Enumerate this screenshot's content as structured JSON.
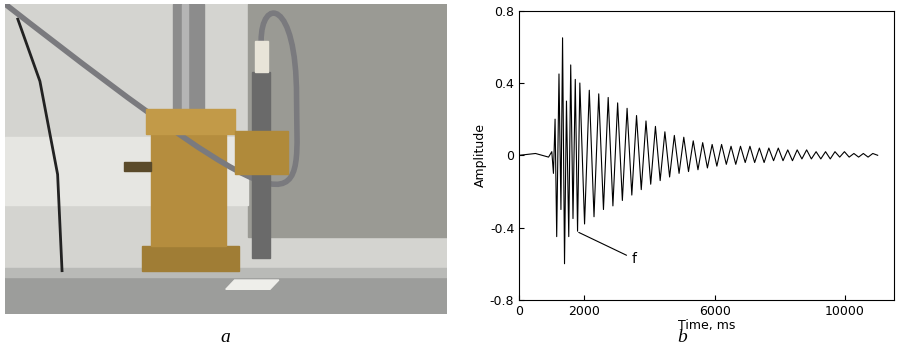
{
  "captions": [
    "a",
    "b"
  ],
  "chart_data": {
    "type": "line",
    "color": "#000000",
    "x_label": "Time, ms",
    "y_label": "Amplitude",
    "xlim": [
      0,
      11500
    ],
    "xticks": [
      0,
      2000,
      6000,
      10000
    ],
    "ylim": [
      -0.8,
      0.8
    ],
    "yticks": [
      -0.8,
      -0.4,
      0,
      0.4,
      0.8
    ],
    "annotations": [
      {
        "text": "f",
        "x": 1750,
        "y": -0.42
      }
    ],
    "x": [
      0,
      500,
      900,
      1000,
      1050,
      1100,
      1150,
      1220,
      1280,
      1330,
      1390,
      1450,
      1520,
      1580,
      1650,
      1720,
      1790,
      1860,
      2005,
      2150,
      2295,
      2440,
      2585,
      2730,
      2875,
      3020,
      3165,
      3310,
      3455,
      3600,
      3745,
      3890,
      4035,
      4180,
      4325,
      4470,
      4615,
      4760,
      4905,
      5050,
      5195,
      5340,
      5485,
      5630,
      5775,
      5920,
      6065,
      6210,
      6355,
      6500,
      6645,
      6790,
      6935,
      7080,
      7225,
      7370,
      7515,
      7660,
      7805,
      7950,
      8095,
      8240,
      8385,
      8530,
      8675,
      8820,
      8965,
      9110,
      9255,
      9400,
      9545,
      9690,
      9835,
      9980,
      10125,
      10270,
      10415,
      10560,
      10705,
      10850,
      11000
    ],
    "values": [
      0.0,
      0.01,
      -0.01,
      0.02,
      -0.1,
      0.2,
      -0.45,
      0.45,
      -0.3,
      0.65,
      -0.6,
      0.3,
      -0.45,
      0.5,
      -0.35,
      0.42,
      -0.42,
      0.4,
      -0.38,
      0.36,
      -0.34,
      0.34,
      -0.3,
      0.32,
      -0.28,
      0.29,
      -0.25,
      0.26,
      -0.22,
      0.22,
      -0.19,
      0.19,
      -0.16,
      0.16,
      -0.14,
      0.13,
      -0.12,
      0.11,
      -0.1,
      0.1,
      -0.09,
      0.08,
      -0.08,
      0.07,
      -0.07,
      0.06,
      -0.06,
      0.06,
      -0.05,
      0.05,
      -0.05,
      0.05,
      -0.04,
      0.05,
      -0.04,
      0.04,
      -0.04,
      0.04,
      -0.03,
      0.04,
      -0.03,
      0.03,
      -0.03,
      0.03,
      -0.02,
      0.03,
      -0.02,
      0.02,
      -0.02,
      0.02,
      -0.02,
      0.02,
      -0.01,
      0.02,
      -0.01,
      0.01,
      -0.01,
      0.01,
      -0.01,
      0.01,
      0.0
    ]
  }
}
